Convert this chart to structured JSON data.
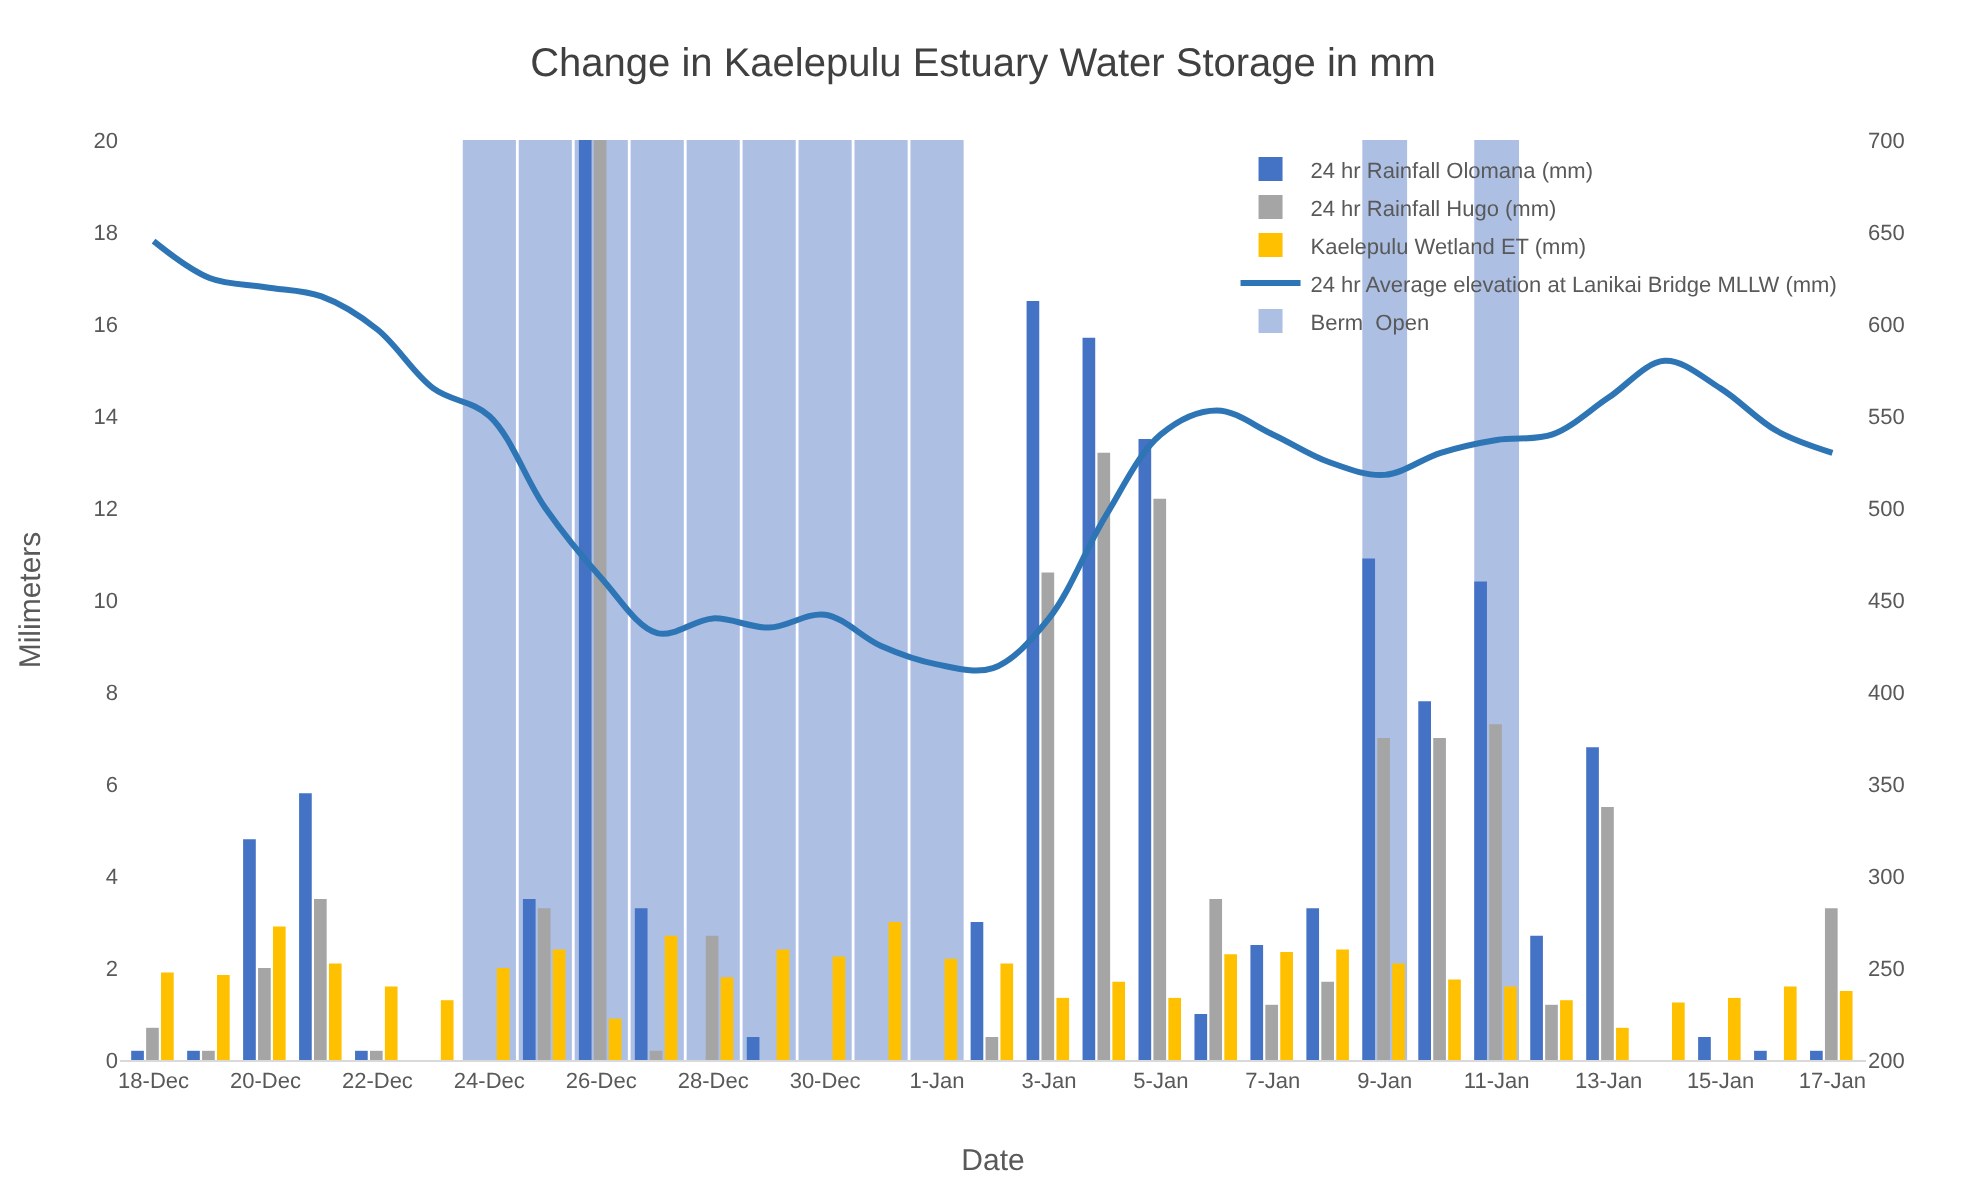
{
  "chart_data": {
    "type": "bar",
    "title": "Change in Kaelepulu Estuary Water Storage in mm",
    "xlabel": "Date",
    "ylabel": "Milimeters",
    "categories": [
      "18-Dec",
      null,
      "20-Dec",
      null,
      "22-Dec",
      null,
      "24-Dec",
      null,
      "26-Dec",
      null,
      "28-Dec",
      null,
      "30-Dec",
      null,
      "1-Jan",
      null,
      "3-Jan",
      null,
      "5-Jan",
      null,
      "7-Jan",
      null,
      "9-Jan",
      null,
      "11-Jan",
      null,
      "13-Jan",
      null,
      "15-Jan",
      null,
      "17-Jan"
    ],
    "series": [
      {
        "name": "24 hr Rainfall Olomana (mm)",
        "color": "#4472c4",
        "values": [
          0.2,
          0.2,
          4.8,
          5.8,
          0.2,
          0,
          0,
          3.5,
          20,
          3.3,
          0,
          0.5,
          0,
          0,
          0,
          3.0,
          16.5,
          15.7,
          13.5,
          1.0,
          2.5,
          3.3,
          10.9,
          7.8,
          10.4,
          2.7,
          6.8,
          0,
          0.5,
          0.2,
          0.2
        ]
      },
      {
        "name": "24 hr Rainfall Hugo (mm)",
        "color": "#a5a5a5",
        "values": [
          0.7,
          0.2,
          2.0,
          3.5,
          0.2,
          0,
          0,
          3.3,
          20,
          0.2,
          2.7,
          0,
          0,
          0,
          0,
          0.5,
          10.6,
          13.2,
          12.2,
          3.5,
          1.2,
          1.7,
          7.0,
          7.0,
          7.3,
          1.2,
          5.5,
          0,
          0,
          0,
          3.3
        ]
      },
      {
        "name": "Kaelepulu Wetland ET (mm)",
        "color": "#ffc000",
        "values": [
          1.9,
          1.85,
          2.9,
          2.1,
          1.6,
          1.3,
          2.0,
          2.4,
          0.9,
          2.7,
          1.8,
          2.4,
          2.25,
          3.0,
          2.2,
          2.1,
          1.35,
          1.7,
          1.35,
          2.3,
          2.35,
          2.4,
          2.1,
          1.75,
          1.6,
          1.3,
          0.7,
          1.25,
          1.35,
          1.6,
          1.5
        ]
      },
      {
        "name": "24 hr Average elevation at Lanikai Bridge MLLW (mm)",
        "type": "line",
        "axis": "y2",
        "color": "#2e75b6",
        "values": [
          645,
          625,
          620,
          615,
          597,
          565,
          550,
          500,
          462,
          432,
          440,
          435,
          442,
          425,
          415,
          413,
          440,
          495,
          540,
          553,
          540,
          525,
          518,
          530,
          537,
          540,
          560,
          580,
          565,
          542,
          530
        ]
      },
      {
        "name": "Berm  Open",
        "axis": "y2",
        "color": "#adc0e4",
        "values": [
          null,
          null,
          null,
          null,
          null,
          null,
          700,
          700,
          700,
          700,
          700,
          700,
          700,
          700,
          700,
          null,
          null,
          null,
          null,
          null,
          null,
          null,
          700,
          null,
          700,
          null,
          null,
          null,
          null,
          null,
          null
        ]
      }
    ],
    "ylim": [
      0,
      20
    ],
    "yticks": [
      0,
      2,
      4,
      6,
      8,
      10,
      12,
      14,
      16,
      18,
      20
    ],
    "y2lim": [
      200,
      700
    ],
    "y2ticks": [
      200,
      250,
      300,
      350,
      400,
      450,
      500,
      550,
      600,
      650,
      700
    ],
    "legend": "top right",
    "grid": false
  }
}
